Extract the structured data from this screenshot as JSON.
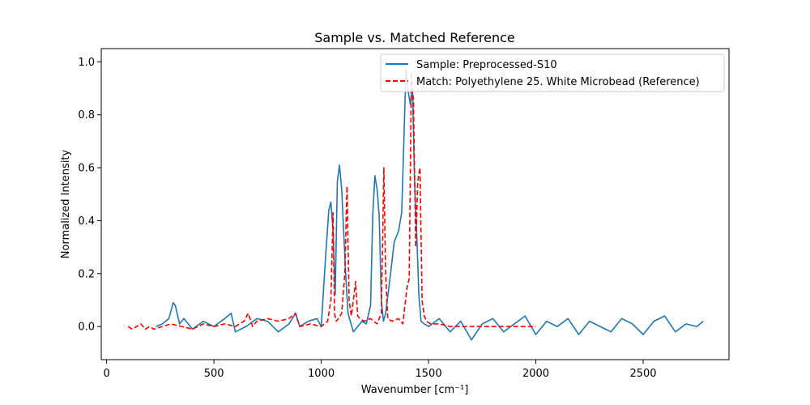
{
  "chart_data": {
    "type": "line",
    "title": "Sample vs. Matched Reference",
    "xlabel": "Wavenumber [cm⁻¹]",
    "ylabel": "Normalized Intensity",
    "xlim": [
      -25,
      2900
    ],
    "ylim": [
      -0.125,
      1.05
    ],
    "x_ticks": [
      0,
      500,
      1000,
      1500,
      2000,
      2500
    ],
    "y_ticks": [
      0.0,
      0.2,
      0.4,
      0.6,
      0.8,
      1.0
    ],
    "y_tick_labels": [
      "0.0",
      "0.2",
      "0.4",
      "0.6",
      "0.8",
      "1.0"
    ],
    "grid": false,
    "legend_position": "top-right",
    "series": [
      {
        "name": "Sample: Preprocessed-S10",
        "color": "#1f77b4",
        "style": "solid",
        "x": [
          230,
          260,
          290,
          310,
          320,
          340,
          360,
          400,
          450,
          500,
          550,
          580,
          600,
          650,
          700,
          750,
          800,
          850,
          880,
          900,
          940,
          980,
          1000,
          1020,
          1035,
          1045,
          1055,
          1065,
          1075,
          1085,
          1095,
          1105,
          1115,
          1125,
          1135,
          1150,
          1170,
          1190,
          1210,
          1230,
          1240,
          1250,
          1260,
          1270,
          1280,
          1290,
          1300,
          1320,
          1340,
          1360,
          1375,
          1385,
          1395,
          1405,
          1415,
          1425,
          1435,
          1445,
          1455,
          1465,
          1480,
          1500,
          1550,
          1600,
          1650,
          1700,
          1750,
          1800,
          1850,
          1900,
          1950,
          2000,
          2050,
          2100,
          2150,
          2200,
          2250,
          2300,
          2350,
          2400,
          2450,
          2500,
          2550,
          2600,
          2650,
          2700,
          2750,
          2780
        ],
        "y": [
          0.0,
          0.01,
          0.03,
          0.09,
          0.08,
          0.01,
          0.03,
          -0.01,
          0.02,
          0.0,
          0.03,
          0.05,
          -0.02,
          0.0,
          0.03,
          0.02,
          -0.02,
          0.01,
          0.05,
          0.0,
          0.02,
          0.03,
          0.0,
          0.26,
          0.44,
          0.47,
          0.36,
          0.12,
          0.55,
          0.61,
          0.52,
          0.35,
          0.18,
          0.05,
          0.02,
          -0.02,
          0.0,
          0.02,
          0.01,
          0.08,
          0.42,
          0.57,
          0.52,
          0.42,
          0.1,
          0.02,
          0.05,
          0.18,
          0.32,
          0.36,
          0.43,
          0.7,
          0.97,
          0.89,
          0.84,
          0.9,
          0.55,
          0.35,
          0.12,
          0.02,
          0.01,
          0.0,
          0.03,
          -0.02,
          0.02,
          -0.05,
          0.01,
          0.03,
          -0.02,
          0.01,
          0.04,
          -0.03,
          0.02,
          0.0,
          0.03,
          -0.03,
          0.02,
          0.0,
          -0.02,
          0.03,
          0.01,
          -0.03,
          0.02,
          0.04,
          -0.02,
          0.01,
          0.0,
          0.02
        ]
      },
      {
        "name": "Match: Polyethylene 25. White Microbead (Reference)",
        "color": "#ff0000",
        "style": "dashed",
        "x": [
          100,
          120,
          140,
          160,
          180,
          200,
          220,
          260,
          300,
          350,
          400,
          450,
          500,
          550,
          600,
          640,
          660,
          680,
          700,
          750,
          800,
          850,
          880,
          900,
          950,
          1000,
          1030,
          1045,
          1055,
          1062,
          1070,
          1080,
          1095,
          1110,
          1120,
          1130,
          1140,
          1150,
          1160,
          1170,
          1180,
          1200,
          1230,
          1260,
          1280,
          1292,
          1300,
          1310,
          1330,
          1360,
          1380,
          1400,
          1410,
          1420,
          1430,
          1440,
          1450,
          1460,
          1470,
          1480,
          1490,
          1510,
          1550,
          1600,
          1700,
          1800,
          1900,
          2000
        ],
        "y": [
          0.0,
          -0.01,
          0.0,
          0.01,
          -0.01,
          0.0,
          -0.01,
          0.0,
          0.01,
          0.0,
          -0.01,
          0.01,
          0.0,
          0.01,
          0.0,
          0.02,
          0.05,
          0.0,
          0.02,
          0.03,
          0.02,
          0.03,
          0.05,
          0.0,
          0.01,
          0.0,
          0.02,
          0.1,
          0.43,
          0.05,
          0.02,
          0.03,
          0.05,
          0.2,
          0.53,
          0.1,
          0.04,
          0.1,
          0.17,
          0.04,
          0.03,
          0.02,
          0.03,
          0.01,
          0.05,
          0.6,
          0.2,
          0.03,
          0.02,
          0.03,
          0.01,
          0.15,
          0.18,
          0.96,
          0.85,
          0.3,
          0.55,
          0.6,
          0.1,
          0.04,
          0.02,
          0.01,
          0.01,
          0.0,
          0.0,
          0.0,
          0.0,
          0.0
        ]
      }
    ]
  }
}
